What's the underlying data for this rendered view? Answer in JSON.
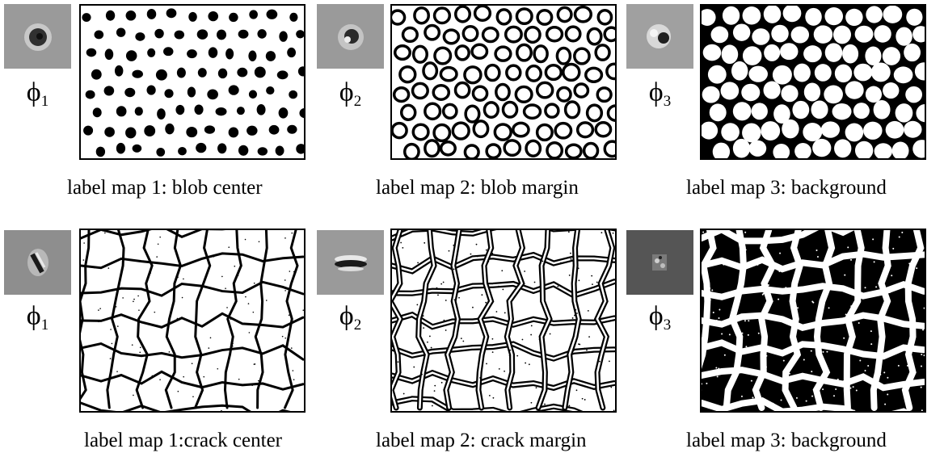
{
  "figure": {
    "rows": [
      {
        "id": "blob",
        "panels": [
          {
            "filter_symbol": "ϕ",
            "filter_index": "1",
            "caption": "label map 1: blob center",
            "thumb_bg": "#9a9a9a",
            "pattern": "blob-dots"
          },
          {
            "filter_symbol": "ϕ",
            "filter_index": "2",
            "caption": "label map 2: blob margin",
            "thumb_bg": "#9a9a9a",
            "pattern": "blob-rings"
          },
          {
            "filter_symbol": "ϕ",
            "filter_index": "3",
            "caption": "label map 3: background",
            "thumb_bg": "#a0a0a0",
            "pattern": "blob-background"
          }
        ]
      },
      {
        "id": "crack",
        "panels": [
          {
            "filter_symbol": "ϕ",
            "filter_index": "1",
            "caption": "label map 1:crack center",
            "thumb_bg": "#8e8e8e",
            "pattern": "crack-lines"
          },
          {
            "filter_symbol": "ϕ",
            "filter_index": "2",
            "caption": "label map 2: crack margin",
            "thumb_bg": "#9a9a9a",
            "pattern": "crack-double-lines"
          },
          {
            "filter_symbol": "ϕ",
            "filter_index": "3",
            "caption": "label map 3: background",
            "thumb_bg": "#555555",
            "pattern": "crack-background"
          }
        ]
      }
    ]
  }
}
